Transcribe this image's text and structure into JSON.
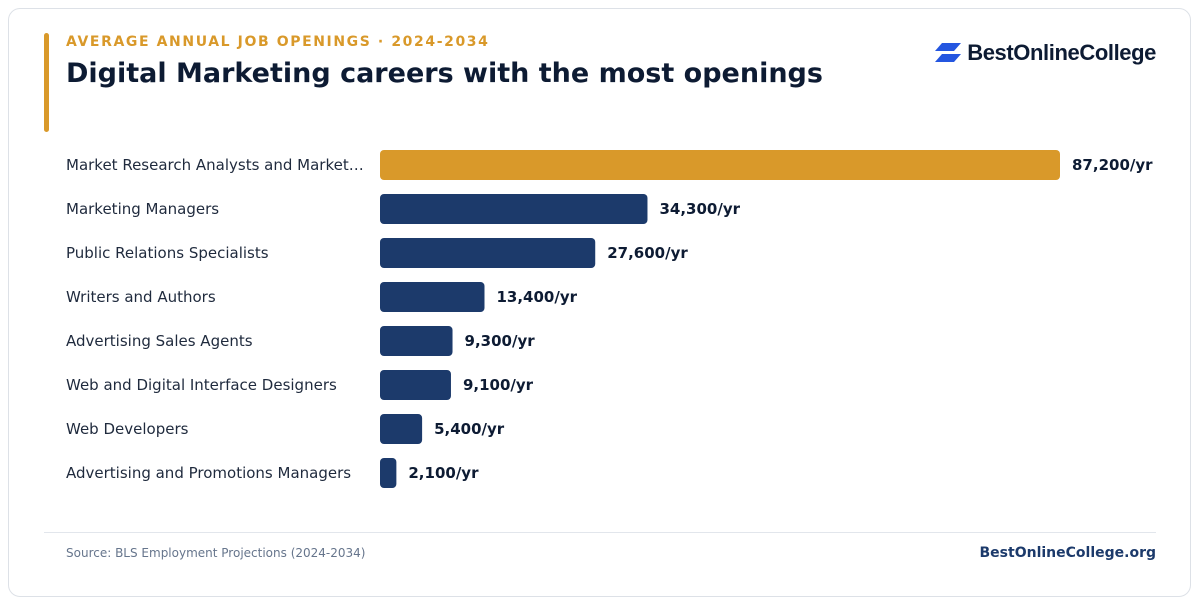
{
  "header": {
    "eyebrow": "AVERAGE ANNUAL JOB OPENINGS · 2024-2034",
    "title": "Digital Marketing careers with the most openings"
  },
  "brand": {
    "logo_text": "BestOnlineCollege",
    "logo_icon": "stacked-parallelogram-icon",
    "logo_color": "#2456e0"
  },
  "colors": {
    "highlight": "#d9992a",
    "bar": "#1c3a6b"
  },
  "chart_data": {
    "type": "bar",
    "orientation": "horizontal",
    "categories": [
      "Market Research Analysts and Market…",
      "Marketing Managers",
      "Public Relations Specialists",
      "Writers and Authors",
      "Advertising Sales Agents",
      "Web and Digital Interface Designers",
      "Web Developers",
      "Advertising and Promotions Managers"
    ],
    "values": [
      87200,
      34300,
      27600,
      13400,
      9300,
      9100,
      5400,
      2100
    ],
    "value_labels": [
      "87,200/yr",
      "34,300/yr",
      "27,600/yr",
      "13,400/yr",
      "9,300/yr",
      "9,100/yr",
      "5,400/yr",
      "2,100/yr"
    ],
    "highlight_index": 0,
    "xlim": [
      0,
      87200
    ],
    "grid": false,
    "legend": "none"
  },
  "footer": {
    "source": "Source: BLS Employment Projections (2024-2034)",
    "site": "BestOnlineCollege.org"
  }
}
